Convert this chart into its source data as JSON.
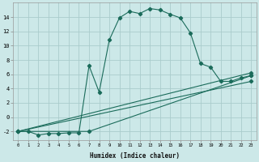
{
  "xlabel": "Humidex (Indice chaleur)",
  "xlim": [
    -0.5,
    23.5
  ],
  "ylim": [
    -3.2,
    16.0
  ],
  "bg_color": "#cce8e8",
  "grid_color": "#aacccc",
  "line_color": "#1a6b5a",
  "line1_x": [
    0,
    1,
    2,
    3,
    4,
    5,
    6,
    7,
    8,
    9,
    10,
    11,
    12,
    13,
    14,
    15,
    16,
    17,
    18,
    19,
    20,
    21,
    22,
    23
  ],
  "line1_y": [
    -2.0,
    -2.0,
    -2.5,
    -2.3,
    -2.3,
    -2.2,
    -2.2,
    7.2,
    3.5,
    10.8,
    13.9,
    14.8,
    14.5,
    15.2,
    15.0,
    14.4,
    13.9,
    11.8,
    7.5,
    7.0,
    5.0,
    5.0,
    5.5,
    5.8
  ],
  "line2_x": [
    0,
    23
  ],
  "line2_y": [
    -2.0,
    6.2
  ],
  "line3_x": [
    0,
    23
  ],
  "line3_y": [
    -2.0,
    5.0
  ],
  "line4_x": [
    0,
    7,
    23
  ],
  "line4_y": [
    -2.0,
    -2.0,
    5.8
  ],
  "yticks": [
    -2,
    0,
    2,
    4,
    6,
    8,
    10,
    12,
    14
  ],
  "xticks": [
    0,
    1,
    2,
    3,
    4,
    5,
    6,
    7,
    8,
    9,
    10,
    11,
    12,
    13,
    14,
    15,
    16,
    17,
    18,
    19,
    20,
    21,
    22,
    23
  ]
}
